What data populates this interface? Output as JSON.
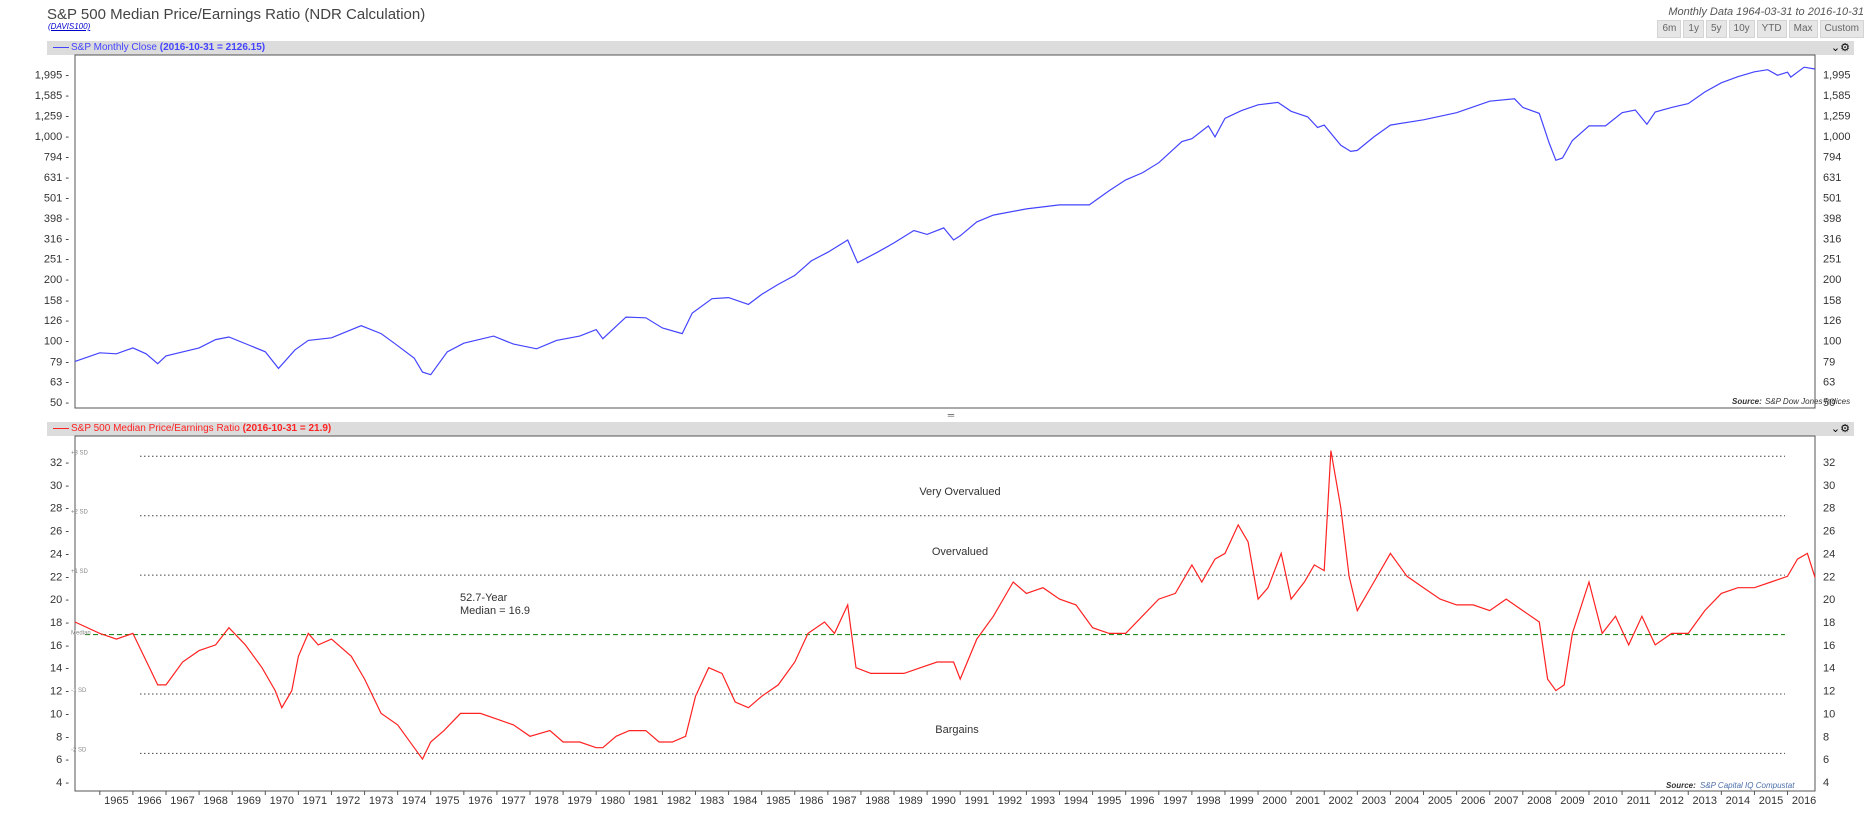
{
  "title": "S&P 500 Median Price/Earnings Ratio (NDR Calculation)",
  "ticker": "(DAVIS100)",
  "date_range": "Monthly Data 1964-03-31 to 2016-10-31",
  "range_buttons": [
    "6m",
    "1y",
    "5y",
    "10y",
    "YTD",
    "Max",
    "Custom"
  ],
  "colors": {
    "price": "#4444ff",
    "pe": "#ff2222",
    "median": "#228b22"
  },
  "panels": {
    "price": {
      "label": "S&P Monthly Close",
      "value": "(2016-10-31 = 2126.15)",
      "source_label": "Source:",
      "source": "S&P Dow Jones Indices"
    },
    "pe": {
      "label": "S&P 500 Median Price/Earnings Ratio",
      "value": "(2016-10-31 = 21.9)",
      "source_label": "Source:",
      "source": "S&P Capital IQ Compustat"
    }
  },
  "controls_icons": [
    "chevron-down-icon",
    "gear-icon"
  ],
  "chart_data": [
    {
      "type": "line",
      "name": "S&P Monthly Close",
      "y_scale": "log",
      "ylim": [
        50,
        2300
      ],
      "xlim": [
        1964.25,
        2016.83
      ],
      "y_ticks": [
        "1,995",
        "1,585",
        "1,259",
        "1,000",
        "794",
        "631",
        "501",
        "398",
        "316",
        "251",
        "200",
        "158",
        "126",
        "100",
        "79",
        "63",
        "50"
      ],
      "series": [
        {
          "x": [
            1964.25,
            1965.0,
            1965.5,
            1966.0,
            1966.4,
            1966.75,
            1967.0,
            1968.0,
            1968.5,
            1968.9,
            1969.5,
            1970.0,
            1970.4,
            1970.9,
            1971.3,
            1972.0,
            1972.9,
            1973.5,
            1973.9,
            1974.5,
            1974.75,
            1975.0,
            1975.5,
            1976.0,
            1976.9,
            1977.5,
            1978.2,
            1978.8,
            1979.5,
            1980.0,
            1980.2,
            1980.9,
            1981.5,
            1982.0,
            1982.6,
            1982.9,
            1983.5,
            1984.0,
            1984.6,
            1985.0,
            1985.5,
            1986.0,
            1986.5,
            1987.0,
            1987.6,
            1987.9,
            1988.5,
            1989.0,
            1989.6,
            1990.0,
            1990.5,
            1990.8,
            1991.0,
            1991.5,
            1992.0,
            1993.0,
            1994.0,
            1994.9,
            1995.5,
            1996.0,
            1996.5,
            1997.0,
            1997.7,
            1998.0,
            1998.5,
            1998.7,
            1999.0,
            1999.5,
            2000.0,
            2000.6,
            2001.0,
            2001.5,
            2001.8,
            2002.0,
            2002.5,
            2002.8,
            2003.0,
            2003.5,
            2004.0,
            2005.0,
            2006.0,
            2007.0,
            2007.75,
            2008.0,
            2008.5,
            2008.8,
            2009.0,
            2009.2,
            2009.5,
            2010.0,
            2010.5,
            2011.0,
            2011.4,
            2011.75,
            2012.0,
            2012.5,
            2013.0,
            2013.5,
            2014.0,
            2014.5,
            2015.0,
            2015.4,
            2015.7,
            2016.0,
            2016.1,
            2016.5,
            2016.83
          ],
          "y": [
            79,
            87,
            86,
            92,
            86,
            77,
            84,
            92,
            101,
            104,
            95,
            88,
            73,
            90,
            100,
            103,
            118,
            108,
            97,
            82,
            70,
            68,
            88,
            97,
            105,
            96,
            91,
            100,
            105,
            113,
            102,
            130,
            129,
            115,
            108,
            136,
            160,
            162,
            150,
            168,
            188,
            208,
            245,
            270,
            310,
            240,
            270,
            300,
            345,
            330,
            355,
            310,
            325,
            380,
            410,
            440,
            460,
            460,
            540,
            610,
            660,
            740,
            940,
            970,
            1120,
            990,
            1220,
            1330,
            1420,
            1460,
            1320,
            1240,
            1100,
            1130,
            900,
            840,
            850,
            990,
            1130,
            1200,
            1300,
            1480,
            1520,
            1380,
            1290,
            920,
            760,
            780,
            950,
            1120,
            1120,
            1300,
            1340,
            1140,
            1310,
            1380,
            1440,
            1640,
            1820,
            1950,
            2060,
            2110,
            1980,
            2050,
            1940,
            2170,
            2126
          ]
        }
      ]
    },
    {
      "type": "line",
      "name": "S&P 500 Median Price/Earnings Ratio",
      "ylim": [
        4,
        34
      ],
      "xlim": [
        1964.25,
        2016.83
      ],
      "y_ticks": [
        32,
        30,
        28,
        26,
        24,
        22,
        20,
        18,
        16,
        14,
        12,
        10,
        8,
        6,
        4
      ],
      "x_ticks": [
        "1965",
        "1966",
        "1967",
        "1968",
        "1969",
        "1970",
        "1971",
        "1972",
        "1973",
        "1974",
        "1975",
        "1976",
        "1977",
        "1978",
        "1979",
        "1980",
        "1981",
        "1982",
        "1983",
        "1984",
        "1985",
        "1986",
        "1987",
        "1988",
        "1989",
        "1990",
        "1991",
        "1992",
        "1993",
        "1994",
        "1995",
        "1996",
        "1997",
        "1998",
        "1999",
        "2000",
        "2001",
        "2002",
        "2003",
        "2004",
        "2005",
        "2006",
        "2007",
        "2008",
        "2009",
        "2010",
        "2011",
        "2012",
        "2013",
        "2014",
        "2015",
        "2016"
      ],
      "reference_lines": [
        {
          "label": "+3 SD",
          "value": 32.5
        },
        {
          "label": "+2 SD",
          "value": 27.3
        },
        {
          "label": "+1 SD",
          "value": 22.1
        },
        {
          "label": "Median",
          "value": 16.9
        },
        {
          "label": "-1 SD",
          "value": 11.7
        },
        {
          "label": "-2 SD",
          "value": 6.5
        }
      ],
      "zone_labels": [
        "Very Overvalued",
        "Overvalued",
        "Bargains"
      ],
      "median_note": [
        "52.7-Year",
        "Median = 16.9"
      ],
      "series": [
        {
          "x": [
            1964.25,
            1965.0,
            1965.5,
            1966.0,
            1966.5,
            1966.75,
            1967.0,
            1967.5,
            1968.0,
            1968.5,
            1968.9,
            1969.4,
            1969.9,
            1970.3,
            1970.5,
            1970.8,
            1971.0,
            1971.3,
            1971.6,
            1972.0,
            1972.6,
            1973.0,
            1973.5,
            1974.0,
            1974.5,
            1974.75,
            1975.0,
            1975.4,
            1975.9,
            1976.5,
            1977.0,
            1977.5,
            1978.0,
            1978.6,
            1979.0,
            1979.5,
            1980.0,
            1980.2,
            1980.6,
            1981.0,
            1981.5,
            1981.9,
            1982.3,
            1982.7,
            1983.0,
            1983.4,
            1983.8,
            1984.2,
            1984.6,
            1985.0,
            1985.5,
            1986.0,
            1986.4,
            1986.9,
            1987.2,
            1987.6,
            1987.85,
            1988.3,
            1988.8,
            1989.3,
            1989.8,
            1990.3,
            1990.8,
            1991.0,
            1991.5,
            1992.0,
            1992.6,
            1993.0,
            1993.5,
            1994.0,
            1994.5,
            1995.0,
            1995.5,
            1996.0,
            1996.5,
            1997.0,
            1997.5,
            1998.0,
            1998.3,
            1998.7,
            1999.0,
            1999.4,
            1999.7,
            2000.0,
            2000.3,
            2000.7,
            2001.0,
            2001.4,
            2001.7,
            2002.0,
            2002.2,
            2002.5,
            2002.75,
            2003.0,
            2003.5,
            2004.0,
            2004.5,
            2005.0,
            2005.5,
            2006.0,
            2006.5,
            2007.0,
            2007.5,
            2008.0,
            2008.5,
            2008.75,
            2009.0,
            2009.25,
            2009.5,
            2010.0,
            2010.4,
            2010.8,
            2011.2,
            2011.6,
            2012.0,
            2012.5,
            2013.0,
            2013.5,
            2014.0,
            2014.5,
            2015.0,
            2015.5,
            2016.0,
            2016.3,
            2016.6,
            2016.83
          ],
          "y": [
            18,
            17,
            16.5,
            17,
            14,
            12.5,
            12.5,
            14.5,
            15.5,
            16,
            17.5,
            16,
            14,
            12,
            10.5,
            12,
            15,
            17,
            16,
            16.5,
            15,
            13,
            10,
            9,
            7,
            6,
            7.5,
            8.5,
            10,
            10,
            9.5,
            9,
            8,
            8.5,
            7.5,
            7.5,
            7,
            7,
            8,
            8.5,
            8.5,
            7.5,
            7.5,
            8,
            11.5,
            14,
            13.5,
            11,
            10.5,
            11.5,
            12.5,
            14.5,
            17,
            18,
            17,
            19.5,
            14,
            13.5,
            13.5,
            13.5,
            14,
            14.5,
            14.5,
            13,
            16.5,
            18.5,
            21.5,
            20.5,
            21,
            20,
            19.5,
            17.5,
            17,
            17,
            18.5,
            20,
            20.5,
            23,
            21.5,
            23.5,
            24,
            26.5,
            25,
            20,
            21,
            24,
            20,
            21.5,
            23,
            22.5,
            33,
            28,
            22,
            19,
            21.5,
            24,
            22,
            21,
            20,
            19.5,
            19.5,
            19,
            20,
            19,
            18,
            13,
            12,
            12.5,
            17,
            21.5,
            17,
            18.5,
            16,
            18.5,
            16,
            17,
            17,
            19,
            20.5,
            21,
            21,
            21.5,
            22,
            23.5,
            24,
            21.9
          ]
        }
      ]
    }
  ]
}
